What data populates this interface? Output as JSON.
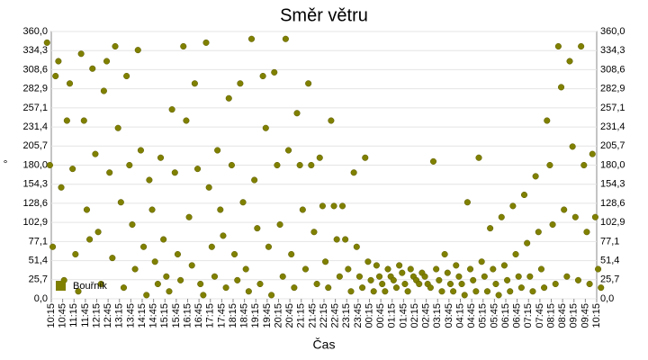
{
  "chart_data": {
    "type": "scatter",
    "title": "Směr větru",
    "x_label": "Čas",
    "y_label": "°",
    "categories": [
      "10:15",
      "10:45",
      "11:15",
      "11:45",
      "12:15",
      "12:45",
      "13:15",
      "13:45",
      "14:15",
      "14:45",
      "15:15",
      "15:45",
      "16:15",
      "16:45",
      "17:15",
      "17:45",
      "18:15",
      "18:45",
      "19:15",
      "19:45",
      "20:15",
      "20:45",
      "21:15",
      "21:45",
      "22:15",
      "22:45",
      "23:15",
      "23:45",
      "00:15",
      "00:45",
      "01:15",
      "01:45",
      "02:15",
      "02:45",
      "03:15",
      "03:45",
      "04:15",
      "04:45",
      "05:15",
      "05:45",
      "06:15",
      "06:45",
      "07:15",
      "07:45",
      "08:15",
      "08:45",
      "09:15",
      "09:45",
      "10:15"
    ],
    "series": [
      {
        "name": "Bouřník",
        "color": "#808000",
        "values": [
          [
            345,
            180,
            70,
            300
          ],
          [
            320,
            150,
            25,
            240
          ],
          [
            290,
            175,
            60,
            10
          ],
          [
            330,
            240,
            120,
            80
          ],
          [
            310,
            195,
            90,
            20
          ],
          [
            280,
            320,
            170,
            55
          ],
          [
            340,
            230,
            130,
            15
          ],
          [
            300,
            180,
            100,
            40
          ],
          [
            335,
            200,
            70,
            5
          ],
          [
            160,
            120,
            50,
            20
          ],
          [
            190,
            80,
            30,
            10
          ],
          [
            255,
            170,
            60,
            25
          ],
          [
            340,
            240,
            110,
            45
          ],
          [
            290,
            175,
            20,
            5
          ],
          [
            345,
            150,
            70,
            30
          ],
          [
            200,
            120,
            85,
            15
          ],
          [
            270,
            180,
            60,
            25
          ],
          [
            290,
            130,
            40,
            10
          ],
          [
            350,
            160,
            95,
            20
          ],
          [
            300,
            230,
            70,
            5
          ],
          [
            305,
            180,
            100,
            30
          ],
          [
            350,
            200,
            60,
            15
          ],
          [
            250,
            180,
            120,
            40
          ],
          [
            290,
            180,
            90,
            20
          ],
          [
            190,
            125,
            50,
            15
          ],
          [
            240,
            125,
            80,
            30
          ],
          [
            125,
            80,
            40,
            10
          ],
          [
            170,
            70,
            30,
            15
          ],
          [
            190,
            50,
            25,
            10
          ],
          [
            45,
            30,
            20,
            10
          ],
          [
            40,
            30,
            25,
            15
          ],
          [
            45,
            35,
            20,
            10
          ],
          [
            40,
            30,
            25,
            20
          ],
          [
            35,
            30,
            20,
            15
          ],
          [
            185,
            40,
            25,
            10
          ],
          [
            60,
            35,
            20,
            10
          ],
          [
            45,
            30,
            20,
            5
          ],
          [
            130,
            40,
            25,
            10
          ],
          [
            190,
            50,
            30,
            10
          ],
          [
            95,
            40,
            20,
            5
          ],
          [
            110,
            45,
            25,
            10
          ],
          [
            125,
            60,
            30,
            15
          ],
          [
            140,
            75,
            30,
            10
          ],
          [
            165,
            90,
            40,
            15
          ],
          [
            240,
            180,
            100,
            20
          ],
          [
            340,
            285,
            120,
            30
          ],
          [
            320,
            205,
            110,
            25
          ],
          [
            340,
            180,
            90,
            20
          ],
          [
            195,
            110,
            40,
            15
          ]
        ]
      }
    ],
    "ylim": [
      0,
      360
    ],
    "yticks": [
      {
        "value": 0,
        "label": "0,0"
      },
      {
        "value": 25.7,
        "label": "25,7"
      },
      {
        "value": 51.4,
        "label": "51,4"
      },
      {
        "value": 77.1,
        "label": "77,1"
      },
      {
        "value": 102.9,
        "label": "102,9"
      },
      {
        "value": 128.6,
        "label": "128,6"
      },
      {
        "value": 154.3,
        "label": "154,3"
      },
      {
        "value": 180,
        "label": "180,0"
      },
      {
        "value": 205.7,
        "label": "205,7"
      },
      {
        "value": 231.4,
        "label": "231,4"
      },
      {
        "value": 257.1,
        "label": "257,1"
      },
      {
        "value": 282.9,
        "label": "282,9"
      },
      {
        "value": 308.6,
        "label": "308,6"
      },
      {
        "value": 334.3,
        "label": "334,3"
      },
      {
        "value": 360,
        "label": "360,0"
      }
    ],
    "grid": true,
    "legend": "bottom-left"
  }
}
